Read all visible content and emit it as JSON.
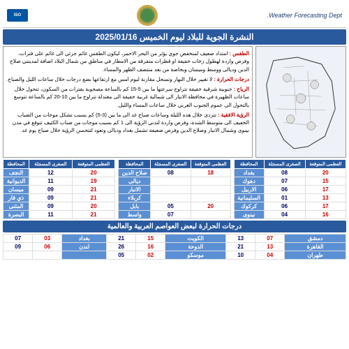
{
  "header": {
    "dept": "Weather Forecasting Dept.",
    "iso": "ISO"
  },
  "title": "النشرة الجوية للبلاد ليوم الخميس 2025/01/16",
  "forecast": {
    "weather_label": "الطقس :",
    "weather_text": "امتداد ضعيف لمنخفض جوي يؤثر من البحر الاحمر، ليكون الطقس غائم جزئي الى غائم على فترات، وفرص واردة لهطول زخات خفيفة او قطرات متفرقة من الامطار في مناطق من شمال البلاد اضافة لمدينتي صلاح الدين وديالى ووسط وميسان وبخاصة من بعد منتصف الظهر والمساء.",
    "temp_label": "درجات الحرارة :",
    "temp_text": "لا تغيير خلال النهار وتسجل مقارنة ليوم امس مع ارتفاعها بضع درجات خلال ساعات الليل والصباح.",
    "wind_label": "الرياح :",
    "wind_text": "جنوبية شرقية خفيفة تتراوح سرعتها ما بين 5-15 كم بالساعة مصحوبة بفترات من السكون، تتحول خلال ساعات الظهيرة في محافظة الانبار الى شمالية غربية خفيفة الى معتدلة تتراوح ما بين 10-20 كم بالساعة تتوسع بالتحول الى عموم الجنوب الغربي خلال ساعات المساء والليل.",
    "vis_label": "الرؤية الافقية :",
    "vis_text": "تتردى خلال هذه الليلة وساعات صباح غد الى ما بين (3-5) كم بسبب تشكل موجات من الضباب الخفيف الى متوسط الشدة، وفرص واردة لتدني الرؤية الى 1 كم بسبب موجات من ضباب الكثيف تتوقع في مدن نينوى وشمال الانبار وصلاح الدين وفرص ضعيفة تشمل بغداد وديالى وتعود لتتحسن الرؤية خلال صباح يوم غد."
  },
  "table_headers": {
    "min": "الصغرى المسجلة",
    "max": "العظمى المتوقعة",
    "gov": "المحافظة"
  },
  "t1": [
    {
      "gov": "بغداد",
      "min": "08",
      "max": "20"
    },
    {
      "gov": "دهوك",
      "min": "07",
      "max": "15"
    },
    {
      "gov": "الاربيل",
      "min": "06",
      "max": "17"
    },
    {
      "gov": "السليمانية",
      "min": "01",
      "max": "13"
    },
    {
      "gov": "كركوك",
      "min": "06",
      "max": "17"
    },
    {
      "gov": "نينوى",
      "min": "04",
      "max": "16"
    }
  ],
  "t2": [
    {
      "gov": "صلاح الدين",
      "min": "08",
      "max": "18"
    },
    {
      "gov": "ديالى",
      "min": "",
      "max": ""
    },
    {
      "gov": "الانبار",
      "min": "",
      "max": ""
    },
    {
      "gov": "كربلاء",
      "min": "",
      "max": ""
    },
    {
      "gov": "بابل",
      "min": "05",
      "max": "20"
    },
    {
      "gov": "واسط",
      "min": "07",
      "max": ""
    }
  ],
  "t3": [
    {
      "gov": "النجف",
      "min": "12",
      "max": "20"
    },
    {
      "gov": "الديوانية",
      "min": "11",
      "max": "19"
    },
    {
      "gov": "ميسان",
      "min": "09",
      "max": "21"
    },
    {
      "gov": "ذي قار",
      "min": "09",
      "max": "21"
    },
    {
      "gov": "المثنى",
      "min": "09",
      "max": "20"
    },
    {
      "gov": "البصرة",
      "min": "11",
      "max": "21"
    }
  ],
  "world_title": "درجات الحرارة لبعض العواصم العربية والعالمية",
  "world": [
    [
      {
        "c": "دمشق",
        "a": "07",
        "b": "13"
      },
      {
        "c": "الكويت",
        "a": "15",
        "b": "21"
      },
      {
        "c": "بغداد",
        "a": "03",
        "b": "07"
      }
    ],
    [
      {
        "c": "القاهرة",
        "a": "13",
        "b": "21"
      },
      {
        "c": "الدوحة",
        "a": "16",
        "b": "26"
      },
      {
        "c": "لندن",
        "a": "06",
        "b": "09"
      }
    ],
    [
      {
        "c": "طهران",
        "a": "04",
        "b": "10"
      },
      {
        "c": "موسكو",
        "a": "02",
        "b": "05"
      },
      {
        "c": "",
        "a": "",
        "b": ""
      }
    ]
  ]
}
